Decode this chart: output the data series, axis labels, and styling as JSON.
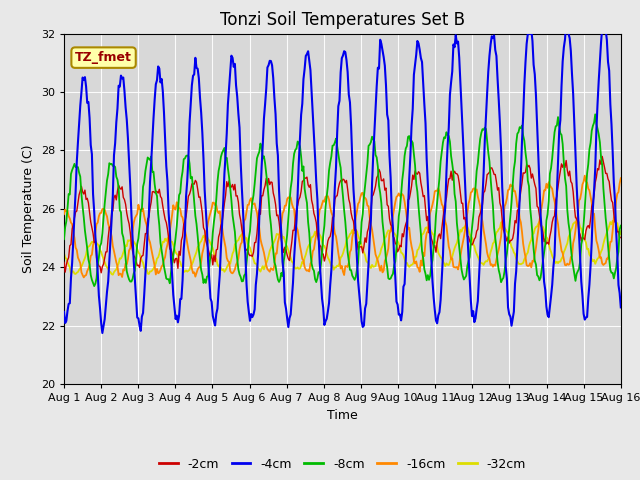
{
  "title": "Tonzi Soil Temperatures Set B",
  "xlabel": "Time",
  "ylabel": "Soil Temperature (C)",
  "ylim": [
    20,
    32
  ],
  "yticks": [
    20,
    22,
    24,
    26,
    28,
    30,
    32
  ],
  "xtick_labels": [
    "Aug 1",
    "Aug 2",
    "Aug 3",
    "Aug 4",
    "Aug 5",
    "Aug 6",
    "Aug 7",
    "Aug 8",
    "Aug 9",
    "Aug 10",
    "Aug 11",
    "Aug 12",
    "Aug 13",
    "Aug 14",
    "Aug 15",
    "Aug 16"
  ],
  "colors": {
    "-2cm": "#cc0000",
    "-4cm": "#0000ee",
    "-8cm": "#00bb00",
    "-16cm": "#ff8800",
    "-32cm": "#dddd00"
  },
  "annotation_text": "TZ_fmet",
  "annotation_color": "#990000",
  "annotation_bg": "#ffffaa",
  "annotation_border": "#aa8800",
  "fig_bg": "#e8e8e8",
  "plot_bg": "#d8d8d8",
  "grid_color": "#ffffff",
  "title_fontsize": 12,
  "label_fontsize": 9,
  "tick_fontsize": 8
}
